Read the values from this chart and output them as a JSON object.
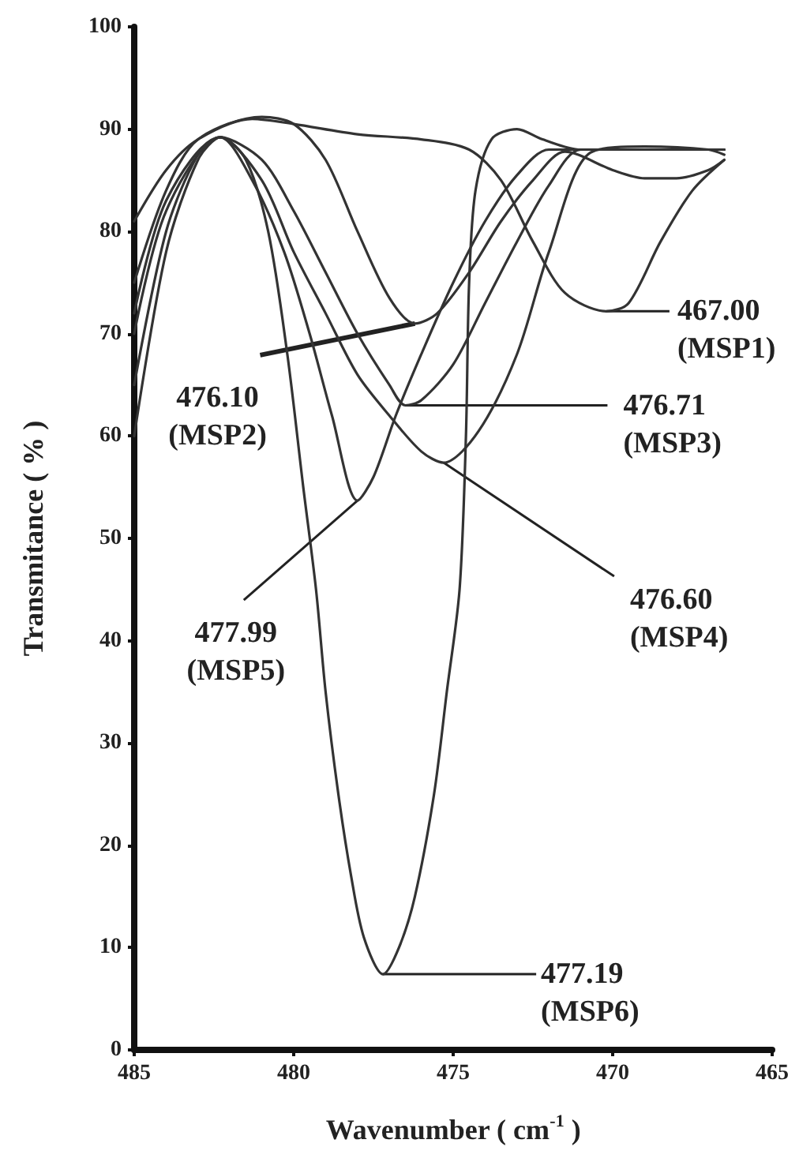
{
  "chart_data": {
    "type": "line",
    "xlabel": "Wavenumber ( cm$^{-1}$ )",
    "ylabel": "Transmitance ( % )",
    "xlim": [
      485,
      465
    ],
    "xticks": [
      485,
      480,
      475,
      470,
      465
    ],
    "ylim": [
      0,
      100
    ],
    "yticks": [
      0,
      10,
      20,
      30,
      40,
      50,
      60,
      70,
      80,
      90,
      100
    ],
    "grid": false,
    "marker": "none",
    "line_style": "solid",
    "series": [
      {
        "color": "#333333",
        "x": [
          485,
          484,
          483,
          481.3,
          480,
          478,
          476,
          474.5,
          473.5,
          472.5,
          471.5,
          470.2,
          469.5,
          468.5,
          467.5,
          466.5
        ],
        "values": [
          81,
          86,
          89,
          91,
          90.5,
          89.5,
          89,
          88,
          85,
          79,
          74,
          72.2,
          73,
          79,
          84,
          87
        ]
      },
      {
        "color": "#333333",
        "x": [
          485,
          484,
          483,
          481,
          480,
          479,
          478,
          477,
          476.2,
          475.5,
          474.5,
          473.5,
          472.5,
          471.5,
          470,
          469,
          468,
          467,
          466.5
        ],
        "values": [
          75,
          84,
          89,
          91.2,
          90.5,
          87,
          80,
          73.5,
          71,
          72,
          76,
          81,
          85,
          87.8,
          86,
          85.2,
          85.2,
          86,
          87
        ]
      },
      {
        "color": "#333333",
        "x": [
          485,
          484,
          482.3,
          481,
          480,
          479,
          478,
          477,
          476.5,
          476,
          475,
          474,
          473,
          472,
          471,
          469,
          467,
          466.5
        ],
        "values": [
          72,
          83,
          89.2,
          87,
          82,
          76,
          70,
          65,
          63,
          63.5,
          67,
          73,
          79,
          84.5,
          88,
          88,
          88,
          88
        ]
      },
      {
        "color": "#333333",
        "x": [
          485,
          484,
          482.3,
          481,
          480,
          479,
          478,
          477,
          476,
          475.3,
          474.2,
          473,
          472,
          470.7,
          469,
          467,
          466.5
        ],
        "values": [
          70,
          82,
          89.2,
          85,
          78,
          72,
          66,
          62,
          58.5,
          57.4,
          60.5,
          68,
          78,
          87.7,
          88.3,
          88,
          87.5
        ]
      },
      {
        "color": "#333333",
        "x": [
          485,
          484,
          483,
          482.3,
          481.3,
          480.3,
          479.5,
          478.8,
          478,
          477.5,
          476.8,
          476,
          475,
          474,
          473,
          472,
          470,
          467,
          466.5
        ],
        "values": [
          60,
          78,
          87,
          89.2,
          85,
          78,
          70,
          62,
          53.7,
          56,
          62,
          68,
          75,
          81,
          85.5,
          88,
          88,
          88,
          88
        ]
      },
      {
        "color": "#333333",
        "x": [
          485,
          484,
          483,
          482.3,
          481.5,
          480.8,
          480.2,
          479.7,
          479.3,
          479,
          478.6,
          478.2,
          477.8,
          477.2,
          476.7,
          476.2,
          475.6,
          475.2,
          474.8,
          474.6,
          474.5,
          474.3,
          473.8,
          473,
          472.2,
          471,
          469,
          466.5
        ],
        "values": [
          65,
          80,
          87.5,
          89.2,
          87,
          80,
          68,
          55,
          45,
          35,
          25,
          17,
          11,
          7.4,
          10,
          15,
          25,
          35,
          45,
          60,
          75,
          84,
          89,
          90,
          89,
          88,
          88,
          88
        ]
      }
    ],
    "annotations": [
      {
        "text": "467.00\n(MSP1)",
        "x": 470.2,
        "y": 72.2
      },
      {
        "text": "476.10\n(MSP2)",
        "x": 476.2,
        "y": 71
      },
      {
        "text": "476.71\n(MSP3)",
        "x": 476.5,
        "y": 63
      },
      {
        "text": "476.60\n(MSP4)",
        "x": 475.3,
        "y": 57.4
      },
      {
        "text": "477.99\n(MSP5)",
        "x": 478,
        "y": 53.7
      },
      {
        "text": "477.19\n(MSP6)",
        "x": 477.2,
        "y": 7.4
      }
    ]
  }
}
